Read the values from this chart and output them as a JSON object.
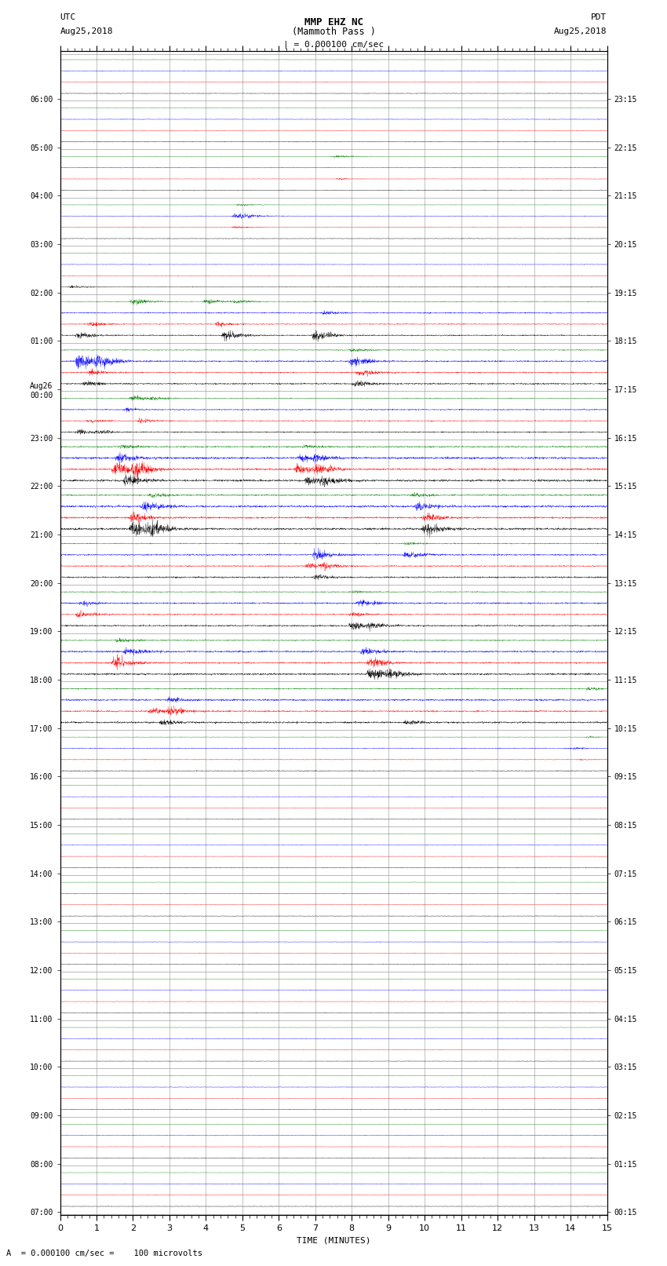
{
  "title_line1": "MMP EHZ NC",
  "title_line2": "(Mammoth Pass )",
  "scale_text": "| = 0.000100 cm/sec",
  "utc_label": "UTC",
  "utc_date": "Aug25,2018",
  "pdt_label": "PDT",
  "pdt_date": "Aug25,2018",
  "xlabel": "TIME (MINUTES)",
  "footnote": "= 0.000100 cm/sec =    100 microvolts",
  "left_times": [
    "07:00",
    "08:00",
    "09:00",
    "10:00",
    "11:00",
    "12:00",
    "13:00",
    "14:00",
    "15:00",
    "16:00",
    "17:00",
    "18:00",
    "19:00",
    "20:00",
    "21:00",
    "22:00",
    "23:00",
    "Aug26\n00:00",
    "01:00",
    "02:00",
    "03:00",
    "04:00",
    "05:00",
    "06:00"
  ],
  "right_times": [
    "00:15",
    "01:15",
    "02:15",
    "03:15",
    "04:15",
    "05:15",
    "06:15",
    "07:15",
    "08:15",
    "09:15",
    "10:15",
    "11:15",
    "12:15",
    "13:15",
    "14:15",
    "15:15",
    "16:15",
    "17:15",
    "18:15",
    "19:15",
    "20:15",
    "21:15",
    "22:15",
    "23:15"
  ],
  "bg_color": "#ffffff",
  "line_colors": [
    "black",
    "red",
    "blue",
    "green"
  ],
  "num_rows": 24,
  "traces_per_row": 4,
  "minutes": 15,
  "seed": 42
}
